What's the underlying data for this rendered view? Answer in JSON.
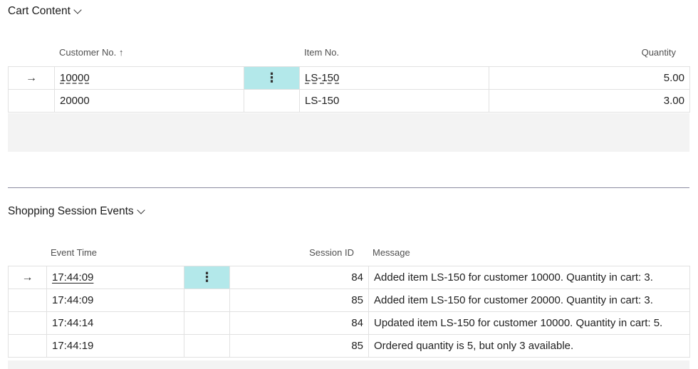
{
  "cart": {
    "title": "Cart Content",
    "columns": {
      "customer_no": "Customer No.",
      "sort_indicator": "↑",
      "item_no": "Item No.",
      "quantity": "Quantity"
    },
    "rows": [
      {
        "arrow": "→",
        "customer_no": "10000",
        "menu": "⋮",
        "item_no": "LS-150",
        "quantity": "5.00"
      },
      {
        "arrow": "",
        "customer_no": "20000",
        "menu": "",
        "item_no": "LS-150",
        "quantity": "3.00"
      }
    ]
  },
  "events": {
    "title": "Shopping Session Events",
    "columns": {
      "event_time": "Event Time",
      "session_id": "Session ID",
      "message": "Message"
    },
    "rows": [
      {
        "arrow": "→",
        "event_time": "17:44:09",
        "menu": "⋮",
        "session_id": "84",
        "message": "Added item LS-150 for customer 10000. Quantity in cart: 3."
      },
      {
        "arrow": "",
        "event_time": "17:44:09",
        "menu": "",
        "session_id": "85",
        "message": "Added item LS-150 for customer 20000. Quantity in cart: 3."
      },
      {
        "arrow": "",
        "event_time": "17:44:14",
        "menu": "",
        "session_id": "84",
        "message": "Updated item LS-150 for customer 10000. Quantity in cart: 5."
      },
      {
        "arrow": "",
        "event_time": "17:44:19",
        "menu": "",
        "session_id": "85",
        "message": "Ordered quantity is 5, but only 3 available."
      }
    ]
  },
  "colors": {
    "selected_menu_cell": "#b3e8ea",
    "empty_area": "#f3f3f3",
    "divider": "#8b8ba0"
  }
}
